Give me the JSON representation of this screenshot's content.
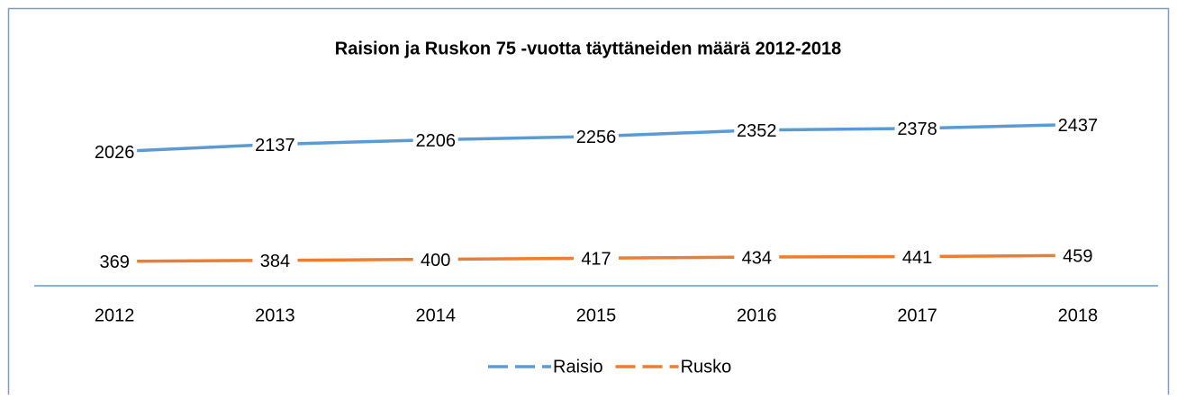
{
  "chart_data": {
    "type": "line",
    "title": "Raision ja Ruskon 75 -vuotta täyttäneiden määrä 2012-2018",
    "categories": [
      "2012",
      "2013",
      "2014",
      "2015",
      "2016",
      "2017",
      "2018"
    ],
    "series": [
      {
        "name": "Raisio",
        "color": "#5b9bd5",
        "values": [
          2026,
          2137,
          2206,
          2256,
          2352,
          2378,
          2437
        ]
      },
      {
        "name": "Rusko",
        "color": "#ed7d31",
        "values": [
          369,
          384,
          400,
          417,
          434,
          441,
          459
        ]
      }
    ],
    "ylim": [
      0,
      3000
    ],
    "legend": "bottom"
  }
}
